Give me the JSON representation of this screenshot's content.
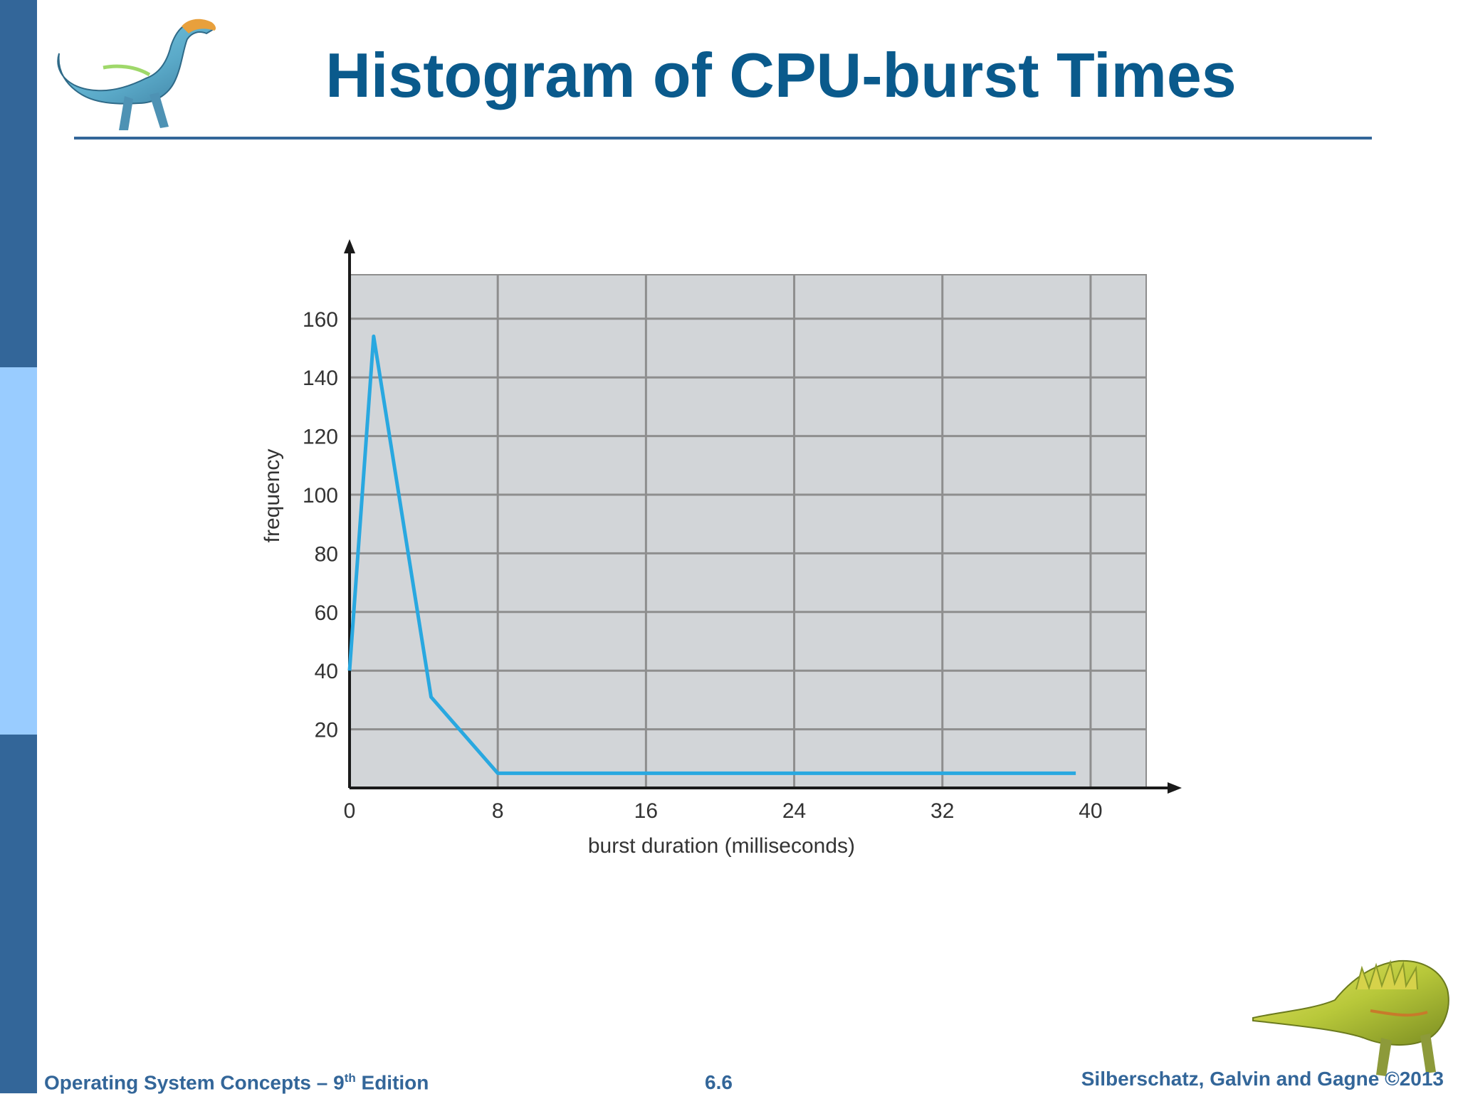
{
  "slide": {
    "title": "Histogram of CPU-burst Times",
    "footer_left_prefix": "Operating System Concepts – 9",
    "footer_left_sup": "th",
    "footer_left_suffix": " Edition",
    "footer_center": "6.6",
    "footer_right": "Silberschatz, Galvin and Gagne ©2013"
  },
  "colors": {
    "sidebar_dark": "#336699",
    "sidebar_light": "#99ccff",
    "title": "#0a5a8c",
    "plot_background": "#d2d5d8",
    "grid": "#8e8e8e",
    "line": "#29a8e0"
  },
  "chart_data": {
    "type": "line",
    "title": "",
    "xlabel": "burst duration (milliseconds)",
    "ylabel": "frequency",
    "xlim": [
      0,
      43
    ],
    "ylim": [
      0,
      175
    ],
    "x_ticks": [
      0,
      8,
      16,
      24,
      32,
      40
    ],
    "y_ticks": [
      20,
      40,
      60,
      80,
      100,
      120,
      140,
      160
    ],
    "grid": true,
    "series": [
      {
        "x": [
          0,
          1.3,
          4.4,
          8,
          16,
          24,
          32,
          39.2
        ],
        "y": [
          40,
          154,
          31,
          5,
          5,
          5,
          5,
          5
        ]
      }
    ]
  }
}
